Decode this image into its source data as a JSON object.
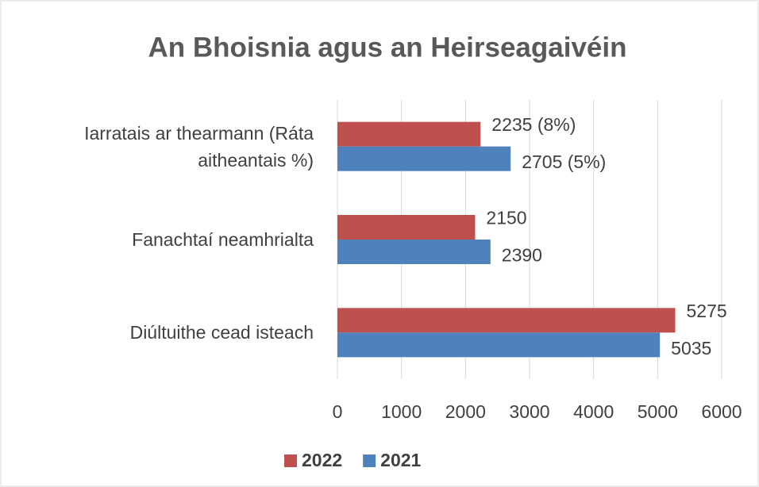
{
  "chart_data": {
    "type": "bar",
    "orientation": "horizontal",
    "title": "An Bhoisnia agus an Heirseagaivéin",
    "categories": [
      "Iarratais ar thearmann (Ráta aitheantais %)",
      "Fanachtaí neamhrialta",
      "Diúltuithe cead isteach"
    ],
    "series": [
      {
        "name": "2022",
        "color": "#c0504d",
        "values": [
          2235,
          2150,
          5275
        ],
        "value_labels": [
          "2235 (8%)",
          "2150",
          "5275"
        ]
      },
      {
        "name": "2021",
        "color": "#4f81bd",
        "values": [
          2705,
          2390,
          5035
        ],
        "value_labels": [
          "2705 (5%)",
          "2390",
          "5035"
        ]
      }
    ],
    "xlim": [
      0,
      6000
    ],
    "xticks": [
      0,
      1000,
      2000,
      3000,
      4000,
      5000,
      6000
    ],
    "grid": true,
    "legend": "bottom"
  }
}
